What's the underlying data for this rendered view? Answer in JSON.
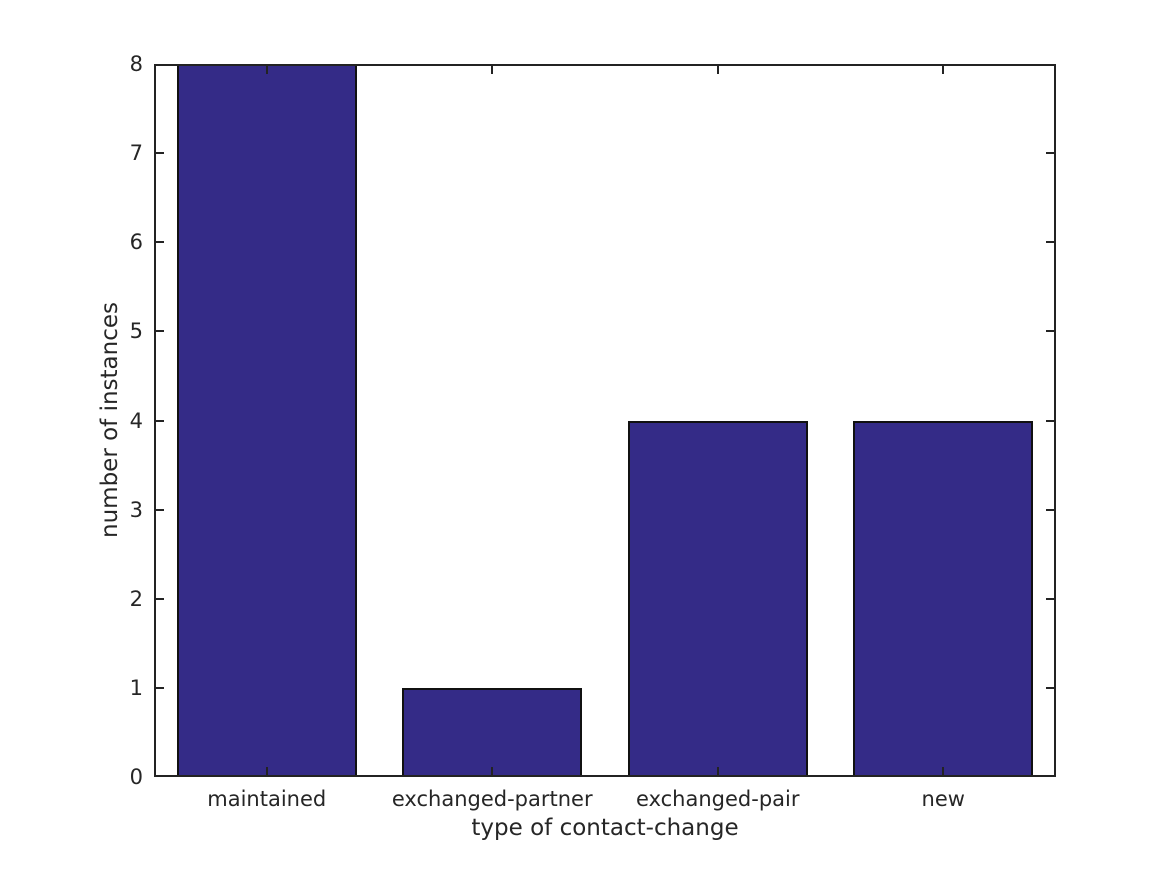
{
  "chart_data": {
    "type": "bar",
    "categories": [
      "maintained",
      "exchanged-partner",
      "exchanged-pair",
      "new"
    ],
    "values": [
      8,
      1,
      4,
      4
    ],
    "title": "",
    "xlabel": "type of contact-change",
    "ylabel": "number of instances",
    "ylim": [
      0,
      8
    ],
    "yticks": [
      0,
      1,
      2,
      3,
      4,
      5,
      6,
      7,
      8
    ],
    "bar_rel_width": 0.8,
    "grid": false,
    "legend_position": "none",
    "colors": {
      "bar_fill": "#342b87",
      "bar_edge": "#111111",
      "axis": "#232323",
      "text": "#262626",
      "background": "#ffffff"
    }
  }
}
